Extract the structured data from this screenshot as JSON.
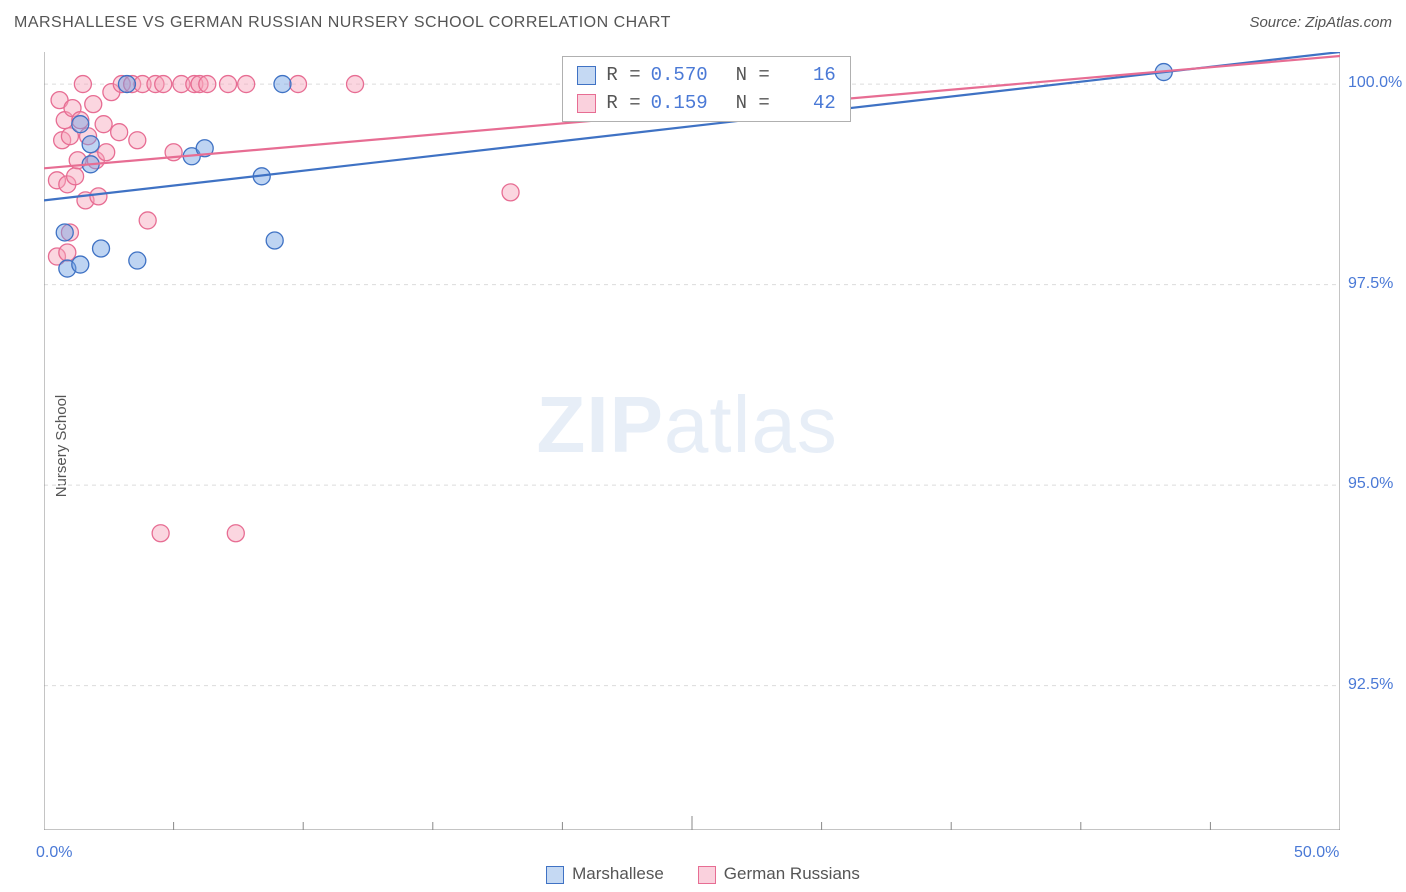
{
  "header": {
    "title": "MARSHALLESE VS GERMAN RUSSIAN NURSERY SCHOOL CORRELATION CHART",
    "source": "Source: ZipAtlas.com"
  },
  "ylabel": "Nursery School",
  "watermark": {
    "bold": "ZIP",
    "rest": "atlas"
  },
  "chart": {
    "type": "scatter",
    "background_color": "#ffffff",
    "grid_color": "#dcdcdc",
    "axis_line_color": "#888888",
    "xlim": [
      0,
      50
    ],
    "ylim": [
      90.7,
      100.4
    ],
    "x_ticks": [
      0,
      25,
      50
    ],
    "x_tick_labels": [
      "0.0%",
      "",
      "50.0%"
    ],
    "x_minor_ticks": [
      5,
      10,
      15,
      20,
      25,
      30,
      35,
      40,
      45
    ],
    "y_grid": [
      92.5,
      95.0,
      97.5,
      100.0
    ],
    "y_tick_labels": [
      "92.5%",
      "95.0%",
      "97.5%",
      "100.0%"
    ],
    "marker_radius": 8.5,
    "marker_opacity": 0.45,
    "series": [
      {
        "name": "Marshallese",
        "color": "#6fa0e2",
        "stroke": "#3f72c4",
        "R": "0.570",
        "N": "16",
        "trend": {
          "x1": 0,
          "y1": 98.55,
          "x2": 50,
          "y2": 100.4,
          "width": 2.2
        },
        "points": [
          [
            0.8,
            98.15
          ],
          [
            0.9,
            97.7
          ],
          [
            1.4,
            99.5
          ],
          [
            1.4,
            97.75
          ],
          [
            1.8,
            99.0
          ],
          [
            1.8,
            99.25
          ],
          [
            2.2,
            97.95
          ],
          [
            3.2,
            100.0
          ],
          [
            3.6,
            97.8
          ],
          [
            5.7,
            99.1
          ],
          [
            6.2,
            99.2
          ],
          [
            8.4,
            98.85
          ],
          [
            8.9,
            98.05
          ],
          [
            9.2,
            100.0
          ],
          [
            25.8,
            100.0
          ],
          [
            43.2,
            100.15
          ]
        ]
      },
      {
        "name": "German Russians",
        "color": "#f6a4bb",
        "stroke": "#e76d93",
        "R": "0.159",
        "N": "42",
        "trend": {
          "x1": 0,
          "y1": 98.95,
          "x2": 50,
          "y2": 100.35,
          "width": 2.2
        },
        "points": [
          [
            0.5,
            97.85
          ],
          [
            0.5,
            98.8
          ],
          [
            0.6,
            99.8
          ],
          [
            0.7,
            99.3
          ],
          [
            0.8,
            99.55
          ],
          [
            0.9,
            98.75
          ],
          [
            0.9,
            97.9
          ],
          [
            1.0,
            99.35
          ],
          [
            1.0,
            98.15
          ],
          [
            1.1,
            99.7
          ],
          [
            1.2,
            98.85
          ],
          [
            1.3,
            99.05
          ],
          [
            1.4,
            99.55
          ],
          [
            1.5,
            100.0
          ],
          [
            1.6,
            98.55
          ],
          [
            1.7,
            99.35
          ],
          [
            1.9,
            99.75
          ],
          [
            2.0,
            99.05
          ],
          [
            2.1,
            98.6
          ],
          [
            2.3,
            99.5
          ],
          [
            2.4,
            99.15
          ],
          [
            2.6,
            99.9
          ],
          [
            2.9,
            99.4
          ],
          [
            3.0,
            100.0
          ],
          [
            3.4,
            100.0
          ],
          [
            3.6,
            99.3
          ],
          [
            3.8,
            100.0
          ],
          [
            4.0,
            98.3
          ],
          [
            4.3,
            100.0
          ],
          [
            4.6,
            100.0
          ],
          [
            4.5,
            94.4
          ],
          [
            5.0,
            99.15
          ],
          [
            5.3,
            100.0
          ],
          [
            5.8,
            100.0
          ],
          [
            6.0,
            100.0
          ],
          [
            6.3,
            100.0
          ],
          [
            7.1,
            100.0
          ],
          [
            7.4,
            94.4
          ],
          [
            7.8,
            100.0
          ],
          [
            9.8,
            100.0
          ],
          [
            12.0,
            100.0
          ],
          [
            18.0,
            98.65
          ]
        ]
      }
    ]
  },
  "legend": {
    "series1_label": "Marshallese",
    "series2_label": "German Russians"
  },
  "stat_labels": {
    "R": "R =",
    "N": "N ="
  }
}
